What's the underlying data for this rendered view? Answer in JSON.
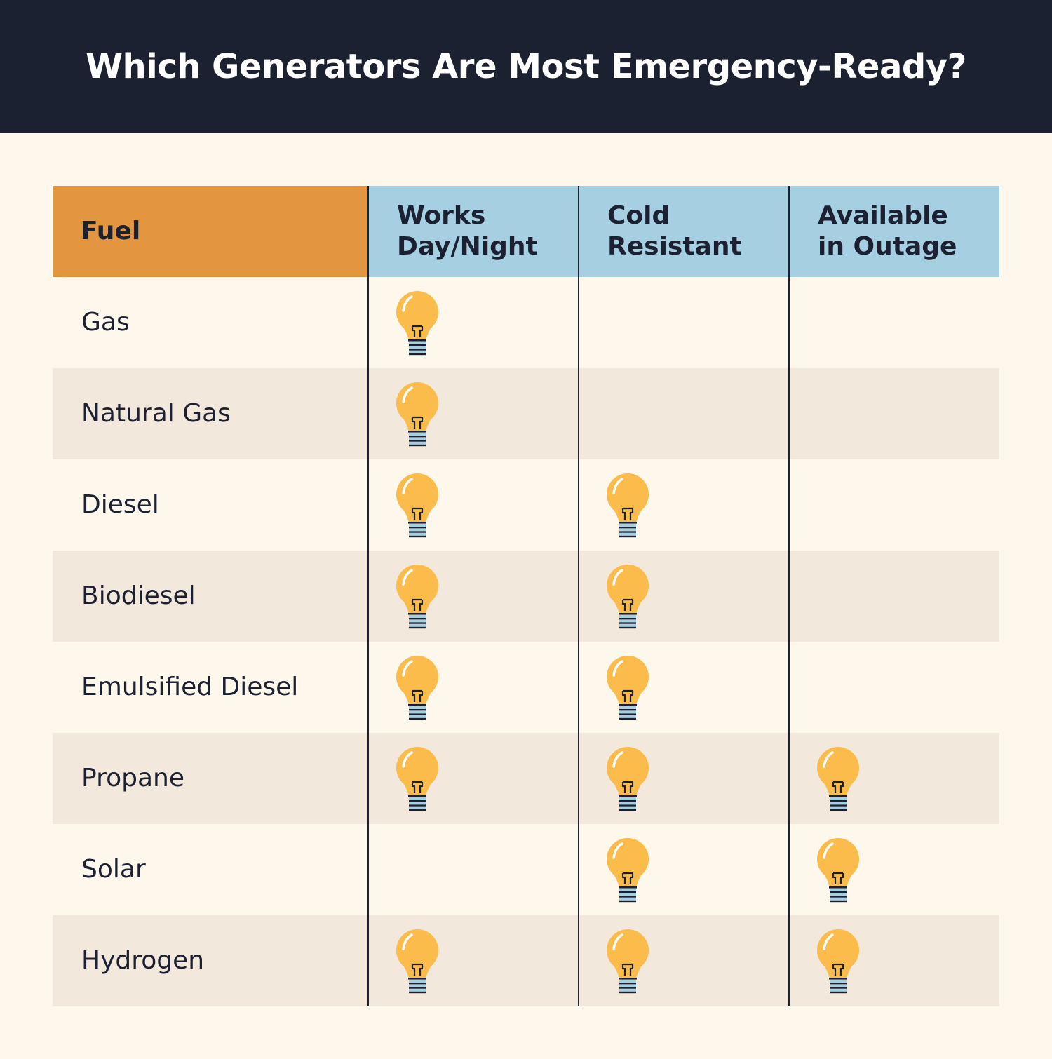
{
  "title": "Which Generators Are Most Emergency-Ready?",
  "chart_data": {
    "type": "table",
    "title": "Which Generators Are Most Emergency-Ready?",
    "columns": [
      "Fuel",
      "Works Day/Night",
      "Cold Resistant",
      "Available in Outage"
    ],
    "header_lines": {
      "fuel": "Fuel",
      "col1": "Works\nDay/Night",
      "col2": "Cold\nResistant",
      "col3": "Available\nin Outage"
    },
    "marker_icon": "light-bulb-icon",
    "rows": [
      {
        "fuel": "Gas",
        "values": [
          true,
          false,
          false
        ]
      },
      {
        "fuel": "Natural Gas",
        "values": [
          true,
          false,
          false
        ]
      },
      {
        "fuel": "Diesel",
        "values": [
          true,
          true,
          false
        ]
      },
      {
        "fuel": "Biodiesel",
        "values": [
          true,
          true,
          false
        ]
      },
      {
        "fuel": "Emulsified Diesel",
        "values": [
          true,
          true,
          false
        ]
      },
      {
        "fuel": "Propane",
        "values": [
          true,
          true,
          true
        ]
      },
      {
        "fuel": "Solar",
        "values": [
          false,
          true,
          true
        ]
      },
      {
        "fuel": "Hydrogen",
        "values": [
          true,
          true,
          true
        ]
      }
    ]
  },
  "colors": {
    "title_bg": "#1c2132",
    "page_bg": "#fef8ec",
    "alt_row_bg": "#f3e8dc",
    "fuel_header_bg": "#e39540",
    "col_header_bg": "#a6d0e2",
    "bulb_fill": "#fbbc4c",
    "bulb_base": "#a6d0e2"
  }
}
